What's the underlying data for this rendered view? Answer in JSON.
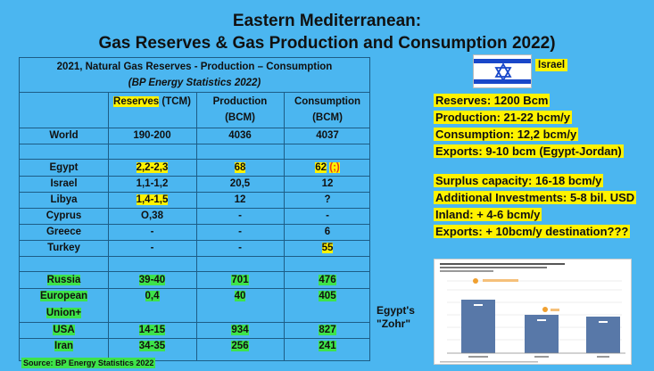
{
  "title": {
    "line1": "Eastern Mediterranean:",
    "line2": "Gas  Reserves & Gas Production and Consumption 2022)"
  },
  "table": {
    "heading": "2021, Natural Gas Reserves - Production – Consumption",
    "subheading": "(BP Energy Statistics 2022)",
    "col_headers": {
      "reserves_a": "Reserves",
      "reserves_b": " (TCM)",
      "production_a": "Production",
      "production_b": "(BCM)",
      "consumption_a": "Consumption",
      "consumption_b": "(BCM)"
    },
    "rows": [
      {
        "country": "World",
        "reserves": "190-200",
        "production": "4036",
        "consumption": "4037"
      },
      {
        "country": "Egypt",
        "reserves": "2,2-2,3",
        "production": "68",
        "consumption": "62",
        "note": "(;)"
      },
      {
        "country": "Israel",
        "reserves": "1,1-1,2",
        "production": "20,5",
        "consumption": "12"
      },
      {
        "country": "Libya",
        "reserves": "1,4-1,5",
        "production": "12",
        "consumption": "?"
      },
      {
        "country": "Cyprus",
        "reserves": "O,38",
        "production": "-",
        "consumption": "-"
      },
      {
        "country": "Greece",
        "reserves": "-",
        "production": "-",
        "consumption": "6"
      },
      {
        "country": "Turkey",
        "reserves": "-",
        "production": "-",
        "consumption": "55"
      },
      {
        "country": "Russia",
        "reserves": "39-40",
        "production": "701",
        "consumption": "476"
      },
      {
        "country": "European",
        "reserves": "0,4",
        "production": "40",
        "consumption": "405"
      },
      {
        "country": "Union+"
      },
      {
        "country": "USA",
        "reserves": "14-15",
        "production": "934",
        "consumption": "827"
      },
      {
        "country": "Iran",
        "reserves": "34-35",
        "production": "256",
        "consumption": "241"
      }
    ]
  },
  "israel": {
    "label": "Israel",
    "block1": [
      "Reserves: 1200 Bcm",
      "Production: 21-22 bcm/y",
      "Consumption: 12,2 bcm/y",
      "Exports: 9-10 bcm (Egypt-Jordan)"
    ],
    "block2": [
      "Surplus capacity: 16-18 bcm/y",
      "Additional Investments: 5-8 bil. USD",
      "Inland: + 4-6 bcm/y",
      "Exports: + 10bcm/y  destination???"
    ]
  },
  "zohr": {
    "line1": "Egypt's",
    "line2": "\"Zohr\""
  },
  "source": "Source: BP Energy Statistics 2022",
  "colors": {
    "background": "#4bb6f0",
    "highlight_yellow": "#fff200",
    "highlight_green": "#3ee34a",
    "flag_blue": "#1947c9"
  }
}
